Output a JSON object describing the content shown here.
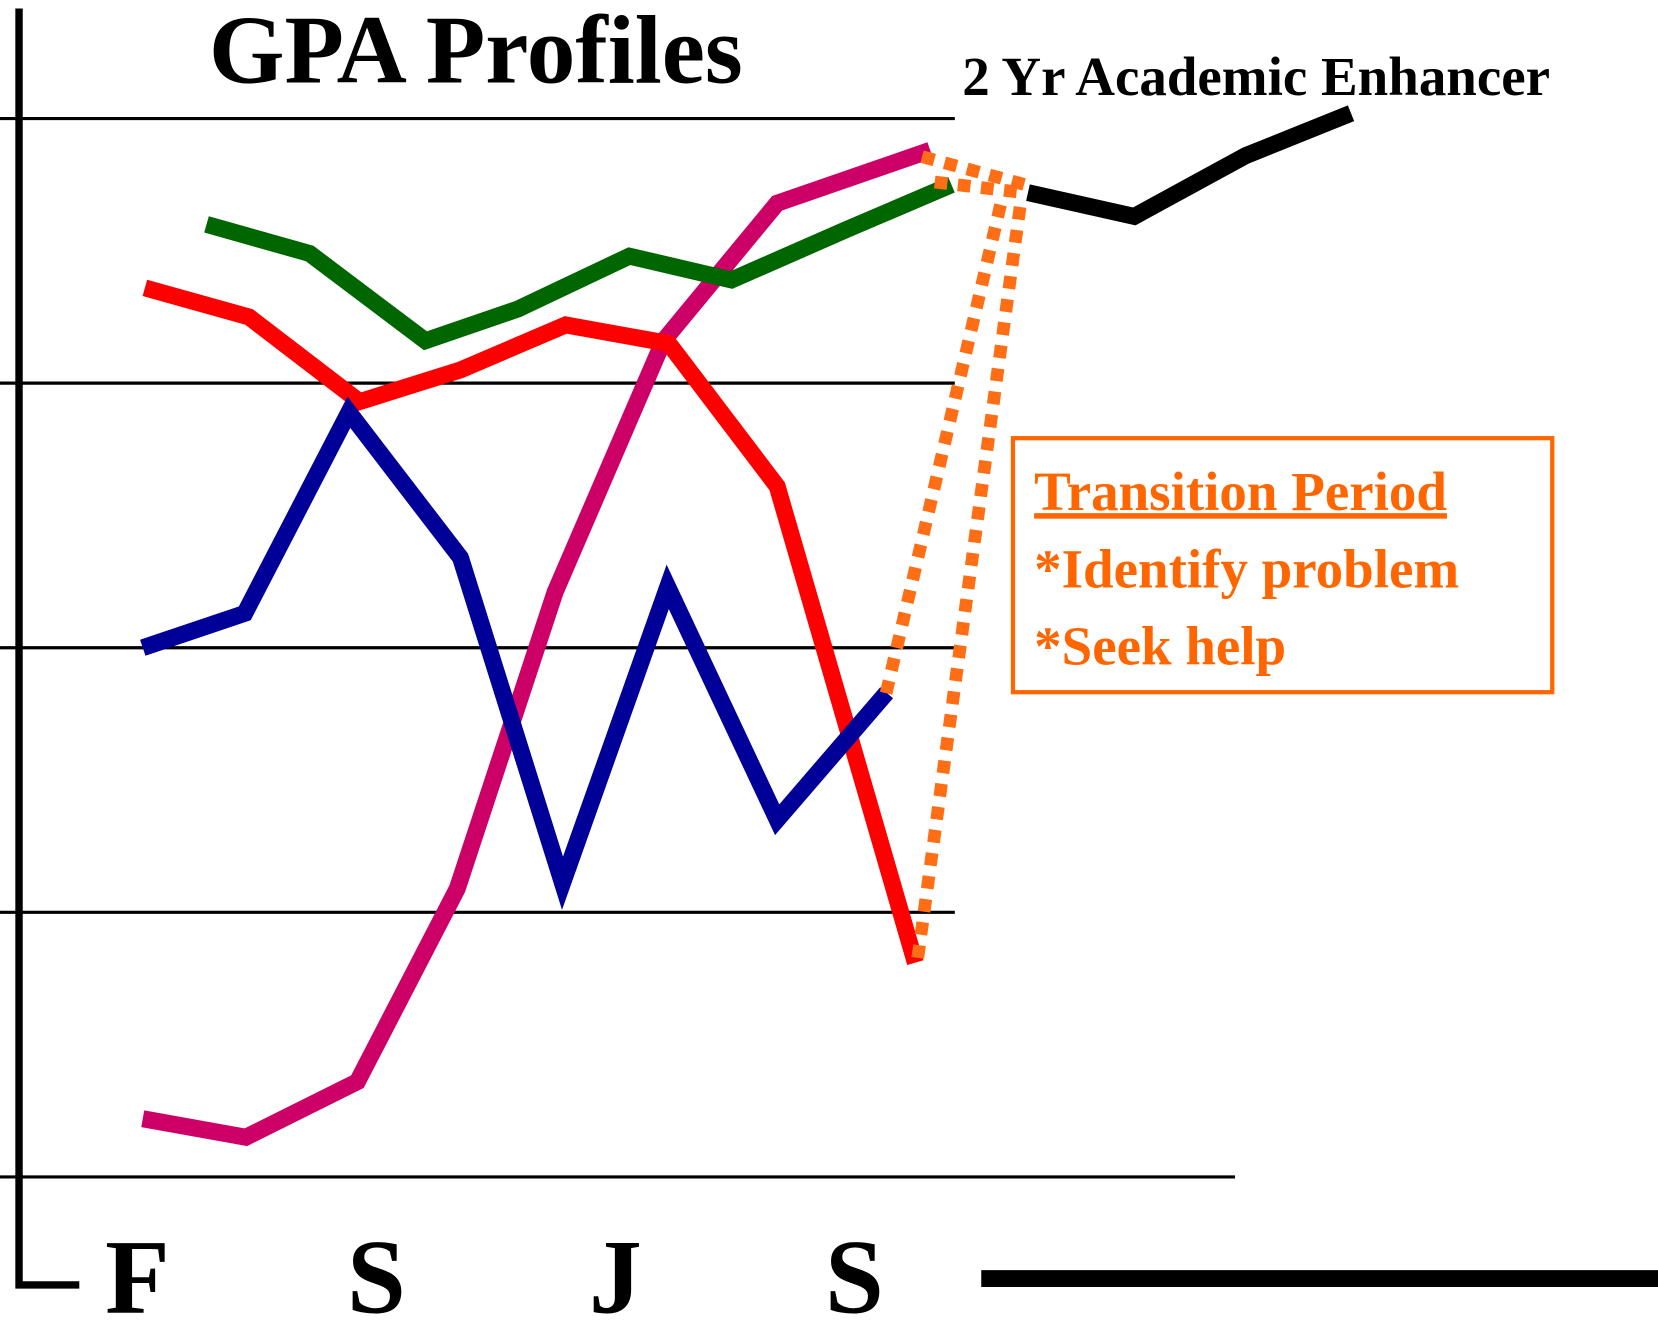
{
  "chart_data": {
    "type": "line",
    "title": "GPA Profiles",
    "categories": [
      "F",
      "S",
      "J",
      "S"
    ],
    "xlim": [
      0,
      12
    ],
    "ylim": [
      0,
      4
    ],
    "yticks": [
      0,
      1,
      2,
      3,
      4
    ],
    "grid": true,
    "series": [
      {
        "color": "#cc0066",
        "x": [
          0,
          0.97,
          2.02,
          2.96,
          3.88,
          4.9,
          5.97,
          7.41
        ],
        "values": [
          0.22,
          0.15,
          0.36,
          1.09,
          2.21,
          3.16,
          3.68,
          3.88
        ]
      },
      {
        "color": "#006600",
        "x": [
          0.6,
          1.57,
          2.66,
          3.53,
          4.58,
          5.54,
          6.62,
          7.61
        ],
        "values": [
          3.6,
          3.49,
          3.16,
          3.28,
          3.48,
          3.39,
          3.58,
          3.75
        ]
      },
      {
        "color": "#ff0000",
        "x": [
          0.02,
          1.0,
          2.04,
          2.99,
          3.98,
          4.95,
          5.97,
          7.27
        ],
        "values": [
          3.36,
          3.25,
          2.93,
          3.05,
          3.22,
          3.15,
          2.61,
          0.81
        ]
      },
      {
        "color": "#000099",
        "x": [
          0,
          0.96,
          1.94,
          2.99,
          3.95,
          4.94,
          5.97,
          7.0
        ],
        "values": [
          2.0,
          2.13,
          2.89,
          2.34,
          1.11,
          2.23,
          1.35,
          1.83
        ]
      },
      {
        "name": "2 Yr Academic Enhancer",
        "color": "#000000",
        "x": [
          8.33,
          9.33,
          10.38,
          11.37
        ],
        "values": [
          3.72,
          3.63,
          3.86,
          4.02
        ]
      }
    ],
    "annotation": {
      "title": "Transition Period",
      "lines": [
        "*Identify problem",
        "*Seek help"
      ],
      "color": "#ff6600"
    }
  }
}
